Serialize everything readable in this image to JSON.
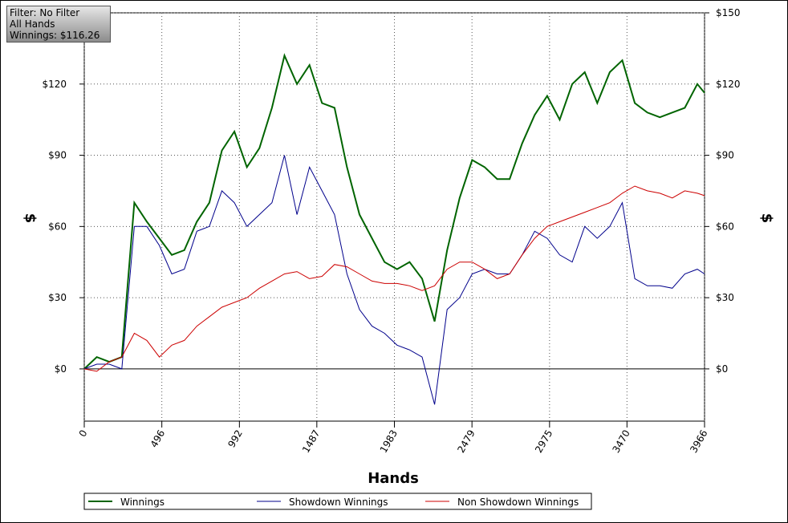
{
  "chart_data": {
    "type": "line",
    "annotations": [
      "Filter: No Filter",
      "All Hands",
      "Winnings: $116.26"
    ],
    "xlabel": "Hands",
    "ylabel": "$",
    "y2label": "$",
    "x": [
      0,
      80,
      160,
      240,
      320,
      400,
      480,
      560,
      640,
      720,
      800,
      880,
      960,
      1040,
      1120,
      1200,
      1280,
      1360,
      1440,
      1520,
      1600,
      1680,
      1760,
      1840,
      1920,
      2000,
      2080,
      2160,
      2240,
      2320,
      2400,
      2480,
      2560,
      2640,
      2720,
      2800,
      2880,
      2960,
      3040,
      3120,
      3200,
      3280,
      3360,
      3440,
      3520,
      3600,
      3680,
      3760,
      3840,
      3920,
      3966
    ],
    "series": [
      {
        "name": "Winnings",
        "color": "#006400",
        "values": [
          0,
          5,
          3,
          5,
          70,
          62,
          55,
          48,
          50,
          62,
          70,
          92,
          100,
          85,
          93,
          110,
          132,
          120,
          128,
          112,
          110,
          85,
          65,
          55,
          45,
          42,
          45,
          38,
          20,
          50,
          72,
          88,
          85,
          80,
          80,
          95,
          107,
          115,
          105,
          120,
          125,
          112,
          125,
          130,
          112,
          108,
          106,
          108,
          110,
          120,
          116.26
        ]
      },
      {
        "name": "Showdown Winnings",
        "color": "#00008b",
        "values": [
          0,
          2,
          2,
          0,
          60,
          60,
          52,
          40,
          42,
          58,
          60,
          75,
          70,
          60,
          65,
          70,
          90,
          65,
          85,
          75,
          65,
          40,
          25,
          18,
          15,
          10,
          8,
          5,
          -15,
          25,
          30,
          40,
          42,
          40,
          40,
          48,
          58,
          55,
          48,
          45,
          60,
          55,
          60,
          70,
          38,
          35,
          35,
          34,
          40,
          42,
          40
        ]
      },
      {
        "name": "Non Showdown Winnings",
        "color": "#cc0000",
        "values": [
          0,
          -1,
          3,
          5,
          15,
          12,
          5,
          10,
          12,
          18,
          22,
          26,
          28,
          30,
          34,
          37,
          40,
          41,
          38,
          39,
          44,
          43,
          40,
          37,
          36,
          36,
          35,
          33,
          35,
          42,
          45,
          45,
          42,
          38,
          40,
          48,
          55,
          60,
          62,
          64,
          66,
          68,
          70,
          74,
          77,
          75,
          74,
          72,
          75,
          74,
          73
        ]
      }
    ],
    "xlim": [
      0,
      3966
    ],
    "xticks": [
      0,
      496,
      992,
      1487,
      1983,
      2479,
      2975,
      3470,
      3966
    ],
    "ylim": [
      -22,
      150
    ],
    "yticks": [
      {
        "value": 0,
        "label": "$0"
      },
      {
        "value": 30,
        "label": "$30"
      },
      {
        "value": 60,
        "label": "$60"
      },
      {
        "value": 90,
        "label": "$90"
      },
      {
        "value": 120,
        "label": "$120"
      },
      {
        "value": 150,
        "label": "$150"
      }
    ],
    "y2lim": [
      -22,
      150
    ],
    "y2ticks": [
      {
        "value": 0,
        "label": "$0"
      },
      {
        "value": 30,
        "label": "$30"
      },
      {
        "value": 60,
        "label": "$60"
      },
      {
        "value": 90,
        "label": "$90"
      },
      {
        "value": 120,
        "label": "$120"
      },
      {
        "value": 150,
        "label": "$150"
      }
    ],
    "grid": true,
    "legend": "bottom"
  }
}
